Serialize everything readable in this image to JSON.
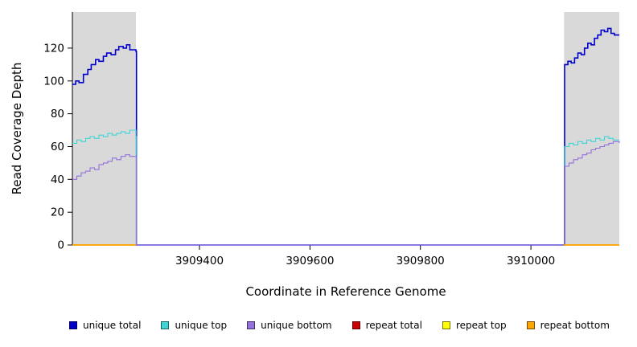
{
  "chart_data": {
    "type": "line",
    "title": "",
    "xlabel": "Coordinate in Reference Genome",
    "ylabel": "Read Coverage Depth",
    "xlim": [
      3909170,
      3910160
    ],
    "ylim": [
      0,
      142
    ],
    "x_ticks": [
      3909400,
      3909600,
      3909800,
      3910000
    ],
    "y_ticks": [
      0,
      20,
      40,
      60,
      80,
      100,
      120
    ],
    "grid": false,
    "legend_position": "bottom",
    "background_color": "#ffffff",
    "shaded_regions": [
      {
        "x0": 3909170,
        "x1": 3909285,
        "color": "#d9d9d9"
      },
      {
        "x0": 3910060,
        "x1": 3910160,
        "color": "#d9d9d9"
      }
    ],
    "series": [
      {
        "name": "unique total",
        "color": "#0000cd",
        "width": 1.6,
        "segments": [
          [
            [
              3909170,
              98
            ],
            [
              3909176,
              100
            ],
            [
              3909182,
              99
            ],
            [
              3909190,
              104
            ],
            [
              3909198,
              107
            ],
            [
              3909204,
              110
            ],
            [
              3909212,
              113
            ],
            [
              3909218,
              112
            ],
            [
              3909226,
              115
            ],
            [
              3909232,
              117
            ],
            [
              3909240,
              116
            ],
            [
              3909248,
              119
            ],
            [
              3909254,
              121
            ],
            [
              3909262,
              120
            ],
            [
              3909268,
              122
            ],
            [
              3909274,
              119
            ],
            [
              3909285,
              118
            ],
            [
              3909286,
              0
            ],
            [
              3910060,
              0
            ],
            [
              3910061,
              110
            ],
            [
              3910067,
              112
            ],
            [
              3910073,
              111
            ],
            [
              3910079,
              114
            ],
            [
              3910085,
              117
            ],
            [
              3910091,
              116
            ],
            [
              3910097,
              120
            ],
            [
              3910103,
              123
            ],
            [
              3910109,
              122
            ],
            [
              3910115,
              126
            ],
            [
              3910121,
              128
            ],
            [
              3910127,
              131
            ],
            [
              3910133,
              130
            ],
            [
              3910139,
              132
            ],
            [
              3910145,
              129
            ],
            [
              3910151,
              128
            ],
            [
              3910160,
              128
            ]
          ]
        ]
      },
      {
        "name": "unique top",
        "color": "#40d5d5",
        "width": 1.1,
        "segments": [
          [
            [
              3909170,
              62
            ],
            [
              3909178,
              64
            ],
            [
              3909186,
              63
            ],
            [
              3909194,
              65
            ],
            [
              3909202,
              66
            ],
            [
              3909210,
              65
            ],
            [
              3909218,
              67
            ],
            [
              3909226,
              66
            ],
            [
              3909234,
              68
            ],
            [
              3909242,
              67
            ],
            [
              3909250,
              68
            ],
            [
              3909258,
              69
            ],
            [
              3909266,
              68
            ],
            [
              3909274,
              70
            ],
            [
              3909285,
              66
            ],
            [
              3909286,
              0
            ],
            [
              3910060,
              0
            ],
            [
              3910061,
              60
            ],
            [
              3910069,
              62
            ],
            [
              3910077,
              61
            ],
            [
              3910085,
              63
            ],
            [
              3910093,
              62
            ],
            [
              3910101,
              64
            ],
            [
              3910109,
              63
            ],
            [
              3910117,
              65
            ],
            [
              3910125,
              64
            ],
            [
              3910133,
              66
            ],
            [
              3910141,
              65
            ],
            [
              3910149,
              64
            ],
            [
              3910160,
              64
            ]
          ]
        ]
      },
      {
        "name": "unique bottom",
        "color": "#9370db",
        "width": 1.1,
        "segments": [
          [
            [
              3909170,
              40
            ],
            [
              3909178,
              42
            ],
            [
              3909186,
              44
            ],
            [
              3909194,
              45
            ],
            [
              3909202,
              47
            ],
            [
              3909210,
              46
            ],
            [
              3909218,
              49
            ],
            [
              3909226,
              50
            ],
            [
              3909234,
              51
            ],
            [
              3909242,
              53
            ],
            [
              3909250,
              52
            ],
            [
              3909258,
              54
            ],
            [
              3909266,
              55
            ],
            [
              3909274,
              54
            ],
            [
              3909285,
              54
            ],
            [
              3909286,
              0
            ],
            [
              3910060,
              0
            ],
            [
              3910061,
              48
            ],
            [
              3910069,
              50
            ],
            [
              3910077,
              52
            ],
            [
              3910085,
              53
            ],
            [
              3910093,
              55
            ],
            [
              3910101,
              56
            ],
            [
              3910109,
              58
            ],
            [
              3910117,
              59
            ],
            [
              3910125,
              60
            ],
            [
              3910133,
              61
            ],
            [
              3910141,
              62
            ],
            [
              3910149,
              63
            ],
            [
              3910160,
              62
            ]
          ]
        ]
      },
      {
        "name": "repeat total",
        "color": "#cc0000",
        "width": 1.4,
        "segments": [
          [
            [
              3909170,
              0
            ],
            [
              3909285,
              0
            ]
          ],
          [
            [
              3910060,
              0
            ],
            [
              3910160,
              0
            ]
          ]
        ]
      },
      {
        "name": "repeat top",
        "color": "#ffff00",
        "width": 1.4,
        "segments": [
          [
            [
              3909170,
              0
            ],
            [
              3909285,
              0
            ]
          ],
          [
            [
              3910060,
              0
            ],
            [
              3910160,
              0
            ]
          ]
        ]
      },
      {
        "name": "repeat bottom",
        "color": "#ffa500",
        "width": 1.6,
        "segments": [
          [
            [
              3909170,
              0
            ],
            [
              3909285,
              0
            ]
          ],
          [
            [
              3910060,
              0
            ],
            [
              3910160,
              0
            ]
          ]
        ]
      }
    ]
  },
  "legend": {
    "items": [
      {
        "label": "unique total",
        "color": "#0000cd"
      },
      {
        "label": "unique top",
        "color": "#40d5d5"
      },
      {
        "label": "unique bottom",
        "color": "#9370db"
      },
      {
        "label": "repeat total",
        "color": "#cc0000"
      },
      {
        "label": "repeat top",
        "color": "#ffff00"
      },
      {
        "label": "repeat bottom",
        "color": "#ffa500"
      }
    ]
  }
}
